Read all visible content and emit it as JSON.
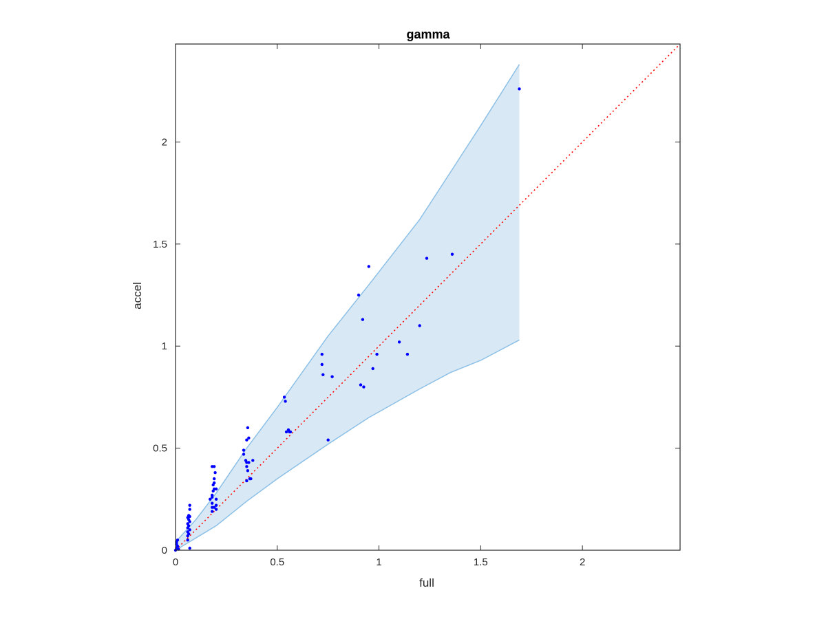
{
  "chart_data": {
    "type": "scatter",
    "title": "gamma",
    "xlabel": "full",
    "ylabel": "accel",
    "xlim": [
      0,
      2.48
    ],
    "ylim": [
      0,
      2.48
    ],
    "xticks": [
      0,
      0.5,
      1,
      1.5,
      2
    ],
    "yticks": [
      0,
      0.5,
      1,
      1.5,
      2
    ],
    "xtick_labels": [
      "0",
      "0.5",
      "1",
      "1.5",
      "2"
    ],
    "ytick_labels": [
      "0",
      "0.5",
      "1",
      "1.5",
      "2"
    ],
    "grid": false,
    "legend": "none",
    "reference_line": {
      "type": "y=x",
      "style": "dotted",
      "color": "#ff0000"
    },
    "band": {
      "color": "#d9e8f5",
      "edge_color": "#8cc0e6",
      "x": [
        0,
        0.1,
        0.2,
        0.35,
        0.5,
        0.75,
        0.95,
        1.2,
        1.35,
        1.5,
        1.69
      ],
      "upper": [
        0.04,
        0.15,
        0.28,
        0.5,
        0.7,
        1.05,
        1.3,
        1.62,
        1.85,
        2.08,
        2.38
      ],
      "lower": [
        0,
        0.06,
        0.12,
        0.24,
        0.35,
        0.52,
        0.65,
        0.79,
        0.87,
        0.93,
        1.03
      ]
    },
    "series": [
      {
        "color": "#0000ff",
        "points": [
          [
            0,
            0
          ],
          [
            0.005,
            0.01
          ],
          [
            0.01,
            0.02
          ],
          [
            0.005,
            0.04
          ],
          [
            0.01,
            0.05
          ],
          [
            0.005,
            0.03
          ],
          [
            0.015,
            0.005
          ],
          [
            0.06,
            0.05
          ],
          [
            0.06,
            0.07
          ],
          [
            0.065,
            0.08
          ],
          [
            0.06,
            0.09
          ],
          [
            0.07,
            0.1
          ],
          [
            0.06,
            0.11
          ],
          [
            0.065,
            0.12
          ],
          [
            0.06,
            0.13
          ],
          [
            0.07,
            0.14
          ],
          [
            0.065,
            0.15
          ],
          [
            0.06,
            0.16
          ],
          [
            0.07,
            0.165
          ],
          [
            0.065,
            0.17
          ],
          [
            0.07,
            0.2
          ],
          [
            0.07,
            0.22
          ],
          [
            0.07,
            0.01
          ],
          [
            0.17,
            0.25
          ],
          [
            0.18,
            0.19
          ],
          [
            0.18,
            0.21
          ],
          [
            0.18,
            0.23
          ],
          [
            0.18,
            0.26
          ],
          [
            0.18,
            0.27
          ],
          [
            0.185,
            0.29
          ],
          [
            0.19,
            0.3
          ],
          [
            0.185,
            0.32
          ],
          [
            0.19,
            0.33
          ],
          [
            0.19,
            0.35
          ],
          [
            0.19,
            0.41
          ],
          [
            0.18,
            0.41
          ],
          [
            0.195,
            0.38
          ],
          [
            0.2,
            0.3
          ],
          [
            0.2,
            0.25
          ],
          [
            0.2,
            0.22
          ],
          [
            0.19,
            0.21
          ],
          [
            0.2,
            0.2
          ],
          [
            0.335,
            0.47
          ],
          [
            0.335,
            0.49
          ],
          [
            0.345,
            0.44
          ],
          [
            0.35,
            0.43
          ],
          [
            0.35,
            0.41
          ],
          [
            0.355,
            0.39
          ],
          [
            0.35,
            0.34
          ],
          [
            0.35,
            0.54
          ],
          [
            0.36,
            0.55
          ],
          [
            0.355,
            0.6
          ],
          [
            0.36,
            0.43
          ],
          [
            0.365,
            0.35
          ],
          [
            0.37,
            0.35
          ],
          [
            0.38,
            0.44
          ],
          [
            0.535,
            0.75
          ],
          [
            0.54,
            0.73
          ],
          [
            0.545,
            0.58
          ],
          [
            0.555,
            0.59
          ],
          [
            0.56,
            0.58
          ],
          [
            0.565,
            0.58
          ],
          [
            0.72,
            0.96
          ],
          [
            0.72,
            0.91
          ],
          [
            0.725,
            0.86
          ],
          [
            0.77,
            0.85
          ],
          [
            0.75,
            0.54
          ],
          [
            0.9,
            1.25
          ],
          [
            0.91,
            0.81
          ],
          [
            0.925,
            0.8
          ],
          [
            0.92,
            1.13
          ],
          [
            0.95,
            1.39
          ],
          [
            0.97,
            0.89
          ],
          [
            0.99,
            0.96
          ],
          [
            1.1,
            1.02
          ],
          [
            1.14,
            0.96
          ],
          [
            1.2,
            1.1
          ],
          [
            1.235,
            1.43
          ],
          [
            1.36,
            1.45
          ],
          [
            1.69,
            2.26
          ]
        ]
      }
    ]
  }
}
